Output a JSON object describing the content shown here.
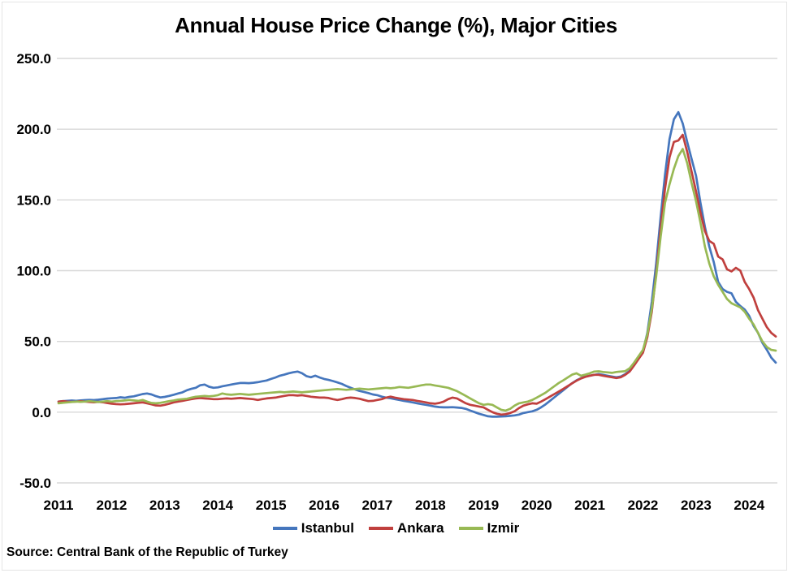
{
  "title": "Annual House Price Change (%), Major Cities",
  "source": "Source: Central Bank of the Republic of Turkey",
  "chart_data": {
    "type": "line",
    "title": "Annual House Price Change (%), Major Cities",
    "xlabel": "",
    "ylabel": "",
    "ylim": [
      -50,
      250
    ],
    "y_tick_labels": [
      "250.0",
      "200.0",
      "150.0",
      "100.0",
      "50.0",
      "0.0",
      "-50.0"
    ],
    "x_tick_labels": [
      "2011",
      "2012",
      "2013",
      "2014",
      "2015",
      "2016",
      "2017",
      "2018",
      "2019",
      "2020",
      "2021",
      "2022",
      "2023",
      "2024"
    ],
    "x_frequency": "monthly",
    "x_range": "2011-01 to 2024-07",
    "grid": "horizontal",
    "grid_color": "#d8d8d8",
    "legend_position": "bottom",
    "series": [
      {
        "name": "Istanbul",
        "color": "#4576BD",
        "values": [
          7.5,
          7.8,
          8.0,
          8.2,
          8.0,
          8.3,
          8.5,
          8.7,
          8.5,
          8.8,
          9.2,
          9.6,
          9.8,
          10.0,
          10.5,
          10.2,
          10.8,
          11.2,
          12.0,
          12.8,
          13.2,
          12.5,
          11.3,
          10.4,
          10.8,
          11.5,
          12.3,
          13.2,
          14.0,
          15.5,
          16.5,
          17.2,
          19.0,
          19.5,
          18.0,
          17.2,
          17.5,
          18.3,
          18.9,
          19.5,
          20.1,
          20.6,
          20.6,
          20.5,
          20.8,
          21.2,
          21.8,
          22.4,
          23.5,
          24.5,
          25.8,
          26.5,
          27.5,
          28.2,
          28.7,
          27.5,
          25.5,
          24.7,
          25.8,
          24.5,
          23.5,
          22.8,
          22.0,
          21.0,
          20.0,
          18.5,
          17.2,
          16.0,
          15.0,
          14.3,
          13.5,
          12.5,
          12.0,
          11.0,
          10.3,
          9.8,
          9.2,
          8.6,
          8.0,
          7.5,
          6.9,
          6.3,
          5.7,
          5.2,
          4.6,
          4.0,
          3.6,
          3.4,
          3.4,
          3.5,
          3.3,
          3.0,
          2.3,
          1.1,
          0.0,
          -1.1,
          -2.0,
          -2.9,
          -3.2,
          -3.2,
          -3.0,
          -2.9,
          -2.6,
          -2.3,
          -1.7,
          -0.6,
          0.0,
          0.6,
          1.7,
          3.4,
          5.5,
          8.0,
          10.5,
          13.0,
          15.5,
          18.0,
          20.5,
          22.5,
          24.0,
          25.2,
          25.8,
          26.4,
          26.9,
          26.4,
          25.8,
          25.2,
          24.7,
          25.2,
          26.9,
          29.2,
          33.8,
          38.4,
          43,
          56,
          78,
          105,
          138,
          168,
          193,
          207,
          212,
          204,
          191,
          179,
          167,
          148,
          131,
          117,
          106,
          92,
          87,
          85,
          84,
          78,
          75,
          72.5,
          68,
          61,
          56,
          49,
          44,
          38.5,
          35
        ]
      },
      {
        "name": "Ankara",
        "color": "#C0403E",
        "values": [
          7.5,
          7.8,
          7.5,
          7.3,
          7.5,
          7.8,
          7.5,
          7.2,
          7.0,
          7.3,
          7.0,
          6.5,
          6.0,
          5.7,
          5.5,
          5.7,
          6.0,
          6.3,
          6.6,
          6.9,
          6.3,
          5.5,
          4.8,
          4.6,
          5.2,
          6.0,
          6.9,
          7.5,
          8.0,
          8.6,
          9.2,
          9.7,
          10.0,
          9.7,
          9.5,
          9.2,
          9.2,
          9.5,
          9.7,
          9.5,
          9.7,
          10.0,
          9.7,
          9.5,
          9.2,
          8.6,
          9.2,
          9.7,
          10.0,
          10.3,
          10.9,
          11.5,
          12.0,
          12.0,
          11.7,
          12.0,
          11.5,
          10.9,
          10.6,
          10.3,
          10.3,
          10.0,
          9.2,
          8.6,
          9.2,
          10.0,
          10.3,
          10.0,
          9.5,
          8.6,
          7.8,
          8.0,
          8.6,
          9.2,
          10.3,
          11.0,
          10.3,
          9.7,
          9.2,
          8.9,
          8.6,
          8.0,
          7.5,
          6.9,
          6.3,
          6.0,
          6.5,
          7.5,
          9.2,
          10.3,
          9.7,
          8.0,
          6.3,
          5.2,
          4.6,
          4.0,
          3.4,
          1.7,
          0.0,
          -1.1,
          -1.7,
          -1.4,
          -0.6,
          0.6,
          2.9,
          4.6,
          5.5,
          6.3,
          6.0,
          7.5,
          9.2,
          11.0,
          12.8,
          14.6,
          16.4,
          18.4,
          20.4,
          22.2,
          23.8,
          25.0,
          25.8,
          26.4,
          26.4,
          25.8,
          25.2,
          24.7,
          24.1,
          24.7,
          26.4,
          28.7,
          33.0,
          37.5,
          42,
          53,
          71,
          98,
          130,
          158,
          180,
          191,
          192,
          196,
          184,
          170,
          156,
          141,
          128,
          121,
          119,
          110,
          108,
          101,
          99.5,
          102,
          100,
          92,
          87,
          81,
          72,
          66,
          60,
          56,
          53.5
        ]
      },
      {
        "name": "Izmir",
        "color": "#98B954",
        "values": [
          6.3,
          6.6,
          6.9,
          7.2,
          7.5,
          7.3,
          7.5,
          7.8,
          7.5,
          7.2,
          7.5,
          7.8,
          7.5,
          7.8,
          8.0,
          8.3,
          8.6,
          8.3,
          8.0,
          8.6,
          7.5,
          6.5,
          6.3,
          6.6,
          7.2,
          7.8,
          8.3,
          8.9,
          9.2,
          9.5,
          10.3,
          10.9,
          11.2,
          11.5,
          11.2,
          11.5,
          12.0,
          13.2,
          12.6,
          12.3,
          12.6,
          12.9,
          12.6,
          12.3,
          12.6,
          12.9,
          13.2,
          13.5,
          13.8,
          14.0,
          14.3,
          14.0,
          14.3,
          14.6,
          14.3,
          14.0,
          14.3,
          14.6,
          14.9,
          15.2,
          15.5,
          15.8,
          16.1,
          16.3,
          16.1,
          15.8,
          16.1,
          16.3,
          16.6,
          16.3,
          16.1,
          16.3,
          16.6,
          16.9,
          17.2,
          16.9,
          17.2,
          17.8,
          17.5,
          17.2,
          17.8,
          18.4,
          19.0,
          19.5,
          19.5,
          18.9,
          18.4,
          17.8,
          17.2,
          16.1,
          14.9,
          13.2,
          11.5,
          9.7,
          8.0,
          6.3,
          5.2,
          5.7,
          5.2,
          3.4,
          1.7,
          1.1,
          2.3,
          4.6,
          6.3,
          6.9,
          7.5,
          8.6,
          10.3,
          12.0,
          13.8,
          16.1,
          18.4,
          20.6,
          22.5,
          24.5,
          26.5,
          27.5,
          25.8,
          26.5,
          27.5,
          28.7,
          28.9,
          28.4,
          28.1,
          27.8,
          28.4,
          28.7,
          29.0,
          31.0,
          35.0,
          39.5,
          44,
          55,
          73,
          96,
          124,
          148,
          161,
          172,
          181,
          186,
          176,
          162,
          149,
          134,
          117,
          105,
          96,
          90,
          85,
          80,
          77,
          75.5,
          74,
          71,
          66,
          62,
          56,
          50,
          46,
          44,
          43.5
        ]
      }
    ]
  }
}
